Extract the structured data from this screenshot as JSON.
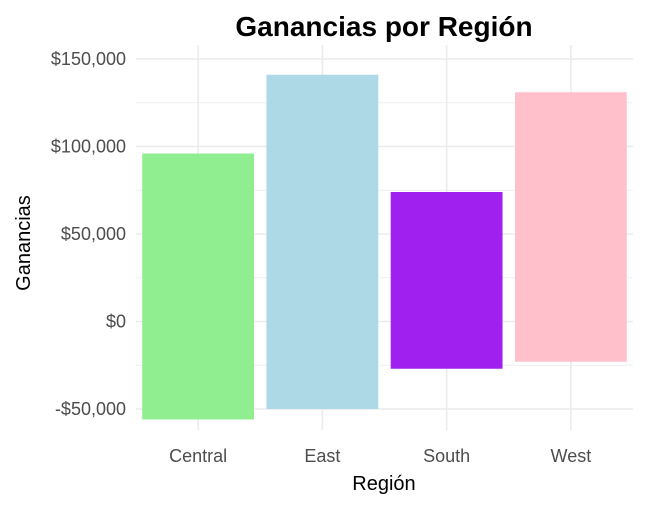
{
  "chart_data": {
    "type": "bar",
    "title": "Ganancias por Región",
    "xlabel": "Región",
    "ylabel": "Ganancias",
    "categories": [
      "Central",
      "East",
      "South",
      "West"
    ],
    "series": [
      {
        "bars": [
          {
            "category": "Central",
            "start": -56000,
            "end": 96000,
            "color": "#90EE90"
          },
          {
            "category": "East",
            "start": -50000,
            "end": 141000,
            "color": "#ADD8E6"
          },
          {
            "category": "South",
            "start": -27000,
            "end": 74000,
            "color": "#A020F0"
          },
          {
            "category": "West",
            "start": -23000,
            "end": 131000,
            "color": "#FFC0CB"
          }
        ]
      }
    ],
    "ylim": [
      -62000,
      158000
    ],
    "yticks": [
      -50000,
      0,
      50000,
      100000,
      150000
    ],
    "ytick_labels": [
      "-$50,000",
      "$0",
      "$50,000",
      "$100,000",
      "$150,000"
    ],
    "grid": true,
    "grid_color": "#ebebeb",
    "background": "#ffffff"
  }
}
